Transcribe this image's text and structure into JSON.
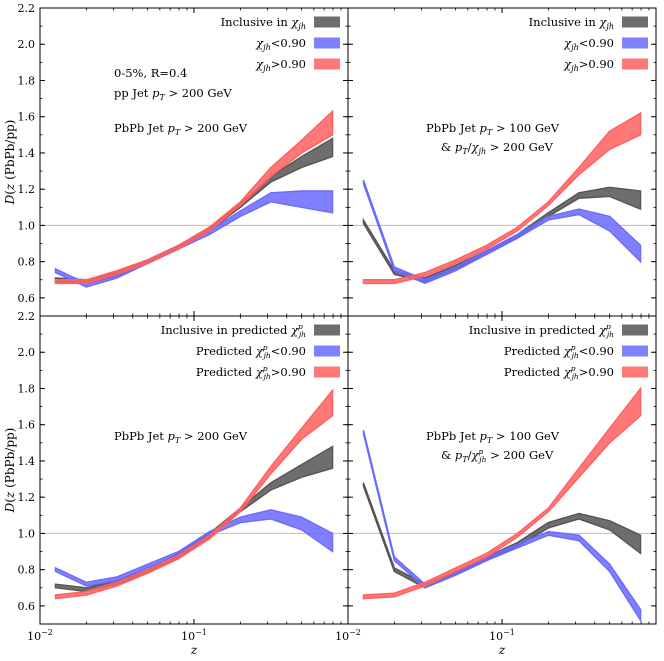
{
  "chart_data": {
    "type": "area",
    "x_scale": "log",
    "xlim": [
      0.01,
      1.0
    ],
    "ylim": [
      0.5,
      2.2
    ],
    "xlabel": "z",
    "ylabel": "D(z) (PbPb/pp)",
    "reference_line": 1.0,
    "colors": {
      "inclusive": "#555555",
      "low": "#6a6aff",
      "high": "#ff6060"
    },
    "x": [
      0.0126,
      0.02,
      0.0316,
      0.05,
      0.0794,
      0.126,
      0.2,
      0.316,
      0.5,
      0.794
    ],
    "panels": [
      {
        "name": "top-left",
        "legend": [
          {
            "key": "inclusive",
            "label": "Inclusive in χjh"
          },
          {
            "key": "low",
            "label": "χjh<0.90"
          },
          {
            "key": "high",
            "label": "χjh>0.90"
          }
        ],
        "annotations": [
          "0-5%, R=0.4",
          "pp Jet pT > 200 GeV",
          "PbPb Jet pT > 200 GeV"
        ],
        "series": [
          {
            "key": "inclusive",
            "name": "Inclusive in χjh",
            "lower": [
              0.69,
              0.68,
              0.72,
              0.79,
              0.87,
              0.97,
              1.1,
              1.24,
              1.32,
              1.38
            ],
            "upper": [
              0.71,
              0.7,
              0.74,
              0.81,
              0.89,
              0.99,
              1.12,
              1.27,
              1.38,
              1.48
            ]
          },
          {
            "key": "low",
            "name": "χjh<0.90",
            "lower": [
              0.74,
              0.66,
              0.71,
              0.79,
              0.87,
              0.95,
              1.05,
              1.13,
              1.1,
              1.07
            ],
            "upper": [
              0.76,
              0.68,
              0.73,
              0.81,
              0.89,
              0.97,
              1.08,
              1.18,
              1.19,
              1.19
            ]
          },
          {
            "key": "high",
            "name": "χjh>0.90",
            "lower": [
              0.68,
              0.68,
              0.73,
              0.79,
              0.87,
              0.97,
              1.11,
              1.27,
              1.4,
              1.5
            ],
            "upper": [
              0.7,
              0.7,
              0.75,
              0.81,
              0.89,
              0.99,
              1.13,
              1.32,
              1.47,
              1.63
            ]
          }
        ]
      },
      {
        "name": "top-right",
        "legend": [
          {
            "key": "inclusive",
            "label": "Inclusive in χjh"
          },
          {
            "key": "low",
            "label": "χjh<0.90"
          },
          {
            "key": "high",
            "label": "χjh>0.90"
          }
        ],
        "annotations": [
          "PbPb Jet pT > 100 GeV",
          "& pT/χjh > 200 GeV"
        ],
        "series": [
          {
            "key": "inclusive",
            "name": "Inclusive in χjh",
            "lower": [
              1.01,
              0.73,
              0.69,
              0.76,
              0.84,
              0.93,
              1.05,
              1.15,
              1.16,
              1.09
            ],
            "upper": [
              1.03,
              0.75,
              0.71,
              0.78,
              0.86,
              0.95,
              1.07,
              1.18,
              1.21,
              1.19
            ]
          },
          {
            "key": "low",
            "name": "χjh<0.90",
            "lower": [
              1.23,
              0.75,
              0.68,
              0.75,
              0.84,
              0.93,
              1.03,
              1.06,
              0.97,
              0.8
            ],
            "upper": [
              1.25,
              0.77,
              0.7,
              0.77,
              0.86,
              0.95,
              1.05,
              1.09,
              1.05,
              0.89
            ]
          },
          {
            "key": "high",
            "name": "χjh>0.90",
            "lower": [
              0.68,
              0.68,
              0.72,
              0.79,
              0.87,
              0.97,
              1.11,
              1.28,
              1.42,
              1.5
            ],
            "upper": [
              0.7,
              0.7,
              0.74,
              0.81,
              0.89,
              0.99,
              1.13,
              1.32,
              1.52,
              1.62
            ]
          }
        ]
      },
      {
        "name": "bottom-left",
        "legend": [
          {
            "key": "inclusive",
            "label": "Inclusive in predicted χpjh"
          },
          {
            "key": "low",
            "label": "Predicted χpjh<0.90"
          },
          {
            "key": "high",
            "label": "Predicted χpjh>0.90"
          }
        ],
        "annotations": [
          "PbPb Jet pT > 200 GeV"
        ],
        "series": [
          {
            "key": "inclusive",
            "name": "Inclusive in predicted χpjh",
            "lower": [
              0.7,
              0.68,
              0.72,
              0.78,
              0.87,
              0.98,
              1.12,
              1.24,
              1.31,
              1.36
            ],
            "upper": [
              0.72,
              0.7,
              0.74,
              0.8,
              0.89,
              1.0,
              1.14,
              1.28,
              1.38,
              1.48
            ]
          },
          {
            "key": "low",
            "name": "Predicted χpjh<0.90",
            "lower": [
              0.79,
              0.71,
              0.74,
              0.81,
              0.88,
              0.99,
              1.06,
              1.08,
              1.02,
              0.9
            ],
            "upper": [
              0.81,
              0.73,
              0.76,
              0.83,
              0.9,
              1.01,
              1.09,
              1.13,
              1.09,
              1.0
            ]
          },
          {
            "key": "high",
            "name": "Predicted χpjh>0.90",
            "lower": [
              0.64,
              0.66,
              0.71,
              0.78,
              0.86,
              0.97,
              1.12,
              1.33,
              1.52,
              1.65
            ],
            "upper": [
              0.66,
              0.68,
              0.73,
              0.8,
              0.88,
              0.99,
              1.14,
              1.37,
              1.58,
              1.79
            ]
          }
        ]
      },
      {
        "name": "bottom-right",
        "legend": [
          {
            "key": "inclusive",
            "label": "Inclusive in predicted χpjh"
          },
          {
            "key": "low",
            "label": "Predicted χpjh<0.90"
          },
          {
            "key": "high",
            "label": "Predicted χpjh>0.90"
          }
        ],
        "annotations": [
          "PbPb Jet pT > 100 GeV",
          "& pT/χpjh > 200 GeV"
        ],
        "series": [
          {
            "key": "inclusive",
            "name": "Inclusive in predicted χpjh",
            "lower": [
              1.26,
              0.79,
              0.7,
              0.77,
              0.85,
              0.93,
              1.03,
              1.08,
              1.02,
              0.89
            ],
            "upper": [
              1.28,
              0.81,
              0.72,
              0.79,
              0.87,
              0.95,
              1.06,
              1.11,
              1.07,
              0.99
            ]
          },
          {
            "key": "low",
            "name": "Predicted χpjh<0.90",
            "lower": [
              1.55,
              0.85,
              0.7,
              0.77,
              0.85,
              0.92,
              0.99,
              0.96,
              0.79,
              0.52
            ],
            "upper": [
              1.57,
              0.87,
              0.72,
              0.79,
              0.87,
              0.94,
              1.01,
              0.99,
              0.83,
              0.58
            ]
          },
          {
            "key": "high",
            "name": "Predicted χpjh>0.90",
            "lower": [
              0.64,
              0.65,
              0.71,
              0.79,
              0.87,
              0.98,
              1.12,
              1.31,
              1.5,
              1.65
            ],
            "upper": [
              0.66,
              0.67,
              0.73,
              0.81,
              0.89,
              1.0,
              1.14,
              1.36,
              1.58,
              1.8
            ]
          }
        ]
      }
    ],
    "y_ticks": [
      0.6,
      0.8,
      1.0,
      1.2,
      1.4,
      1.6,
      1.8,
      2.0,
      2.2
    ],
    "y_tick_labels": [
      "0.6",
      "0.8",
      "1.0",
      "1.2",
      "1.4",
      "1.6",
      "1.8",
      "2.0",
      "2.2"
    ],
    "x_tick_labels": [
      "10−2",
      "10−1"
    ]
  }
}
